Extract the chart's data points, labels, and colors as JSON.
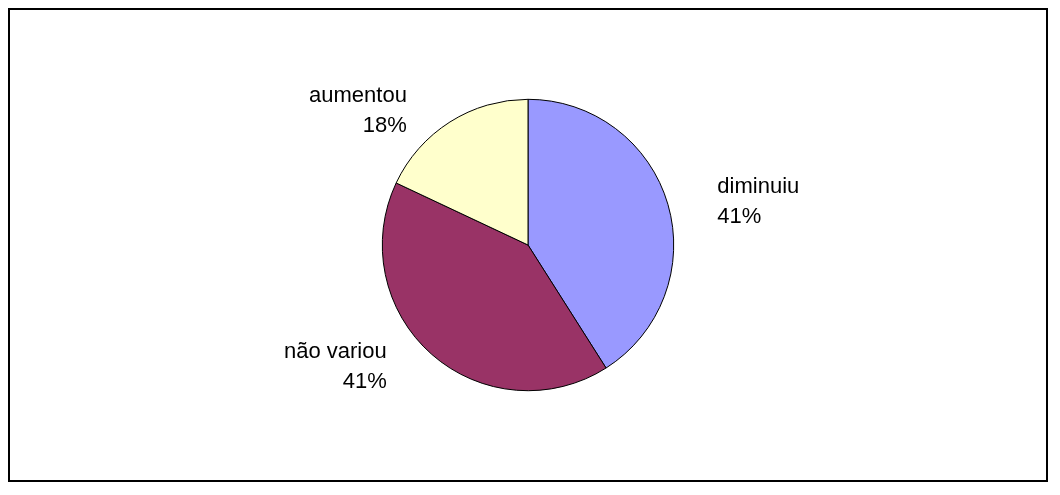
{
  "chart_data": {
    "type": "pie",
    "categories": [
      "diminuiu",
      "não variou",
      "aumentou"
    ],
    "values": [
      41,
      41,
      18
    ],
    "colors": [
      "#9999ff",
      "#993366",
      "#ffffcc"
    ],
    "value_labels": [
      "41%",
      "41%",
      "18%"
    ]
  }
}
